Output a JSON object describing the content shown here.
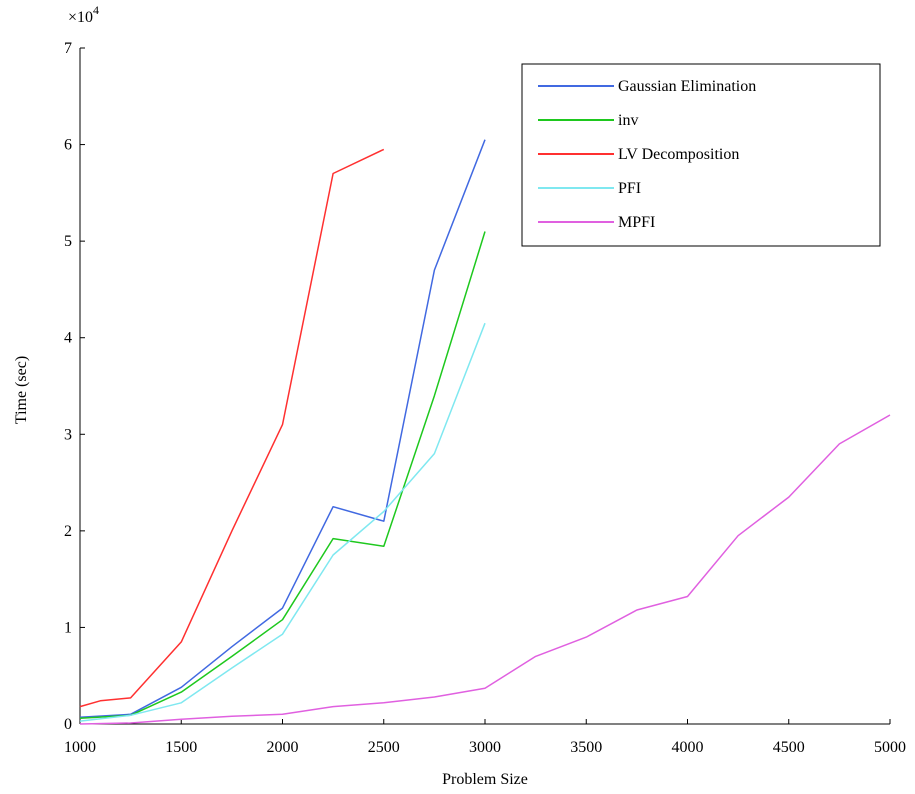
{
  "chart_data": {
    "type": "line",
    "title": "",
    "xlabel": "Problem Size",
    "ylabel": "Time (sec)",
    "y_multiplier_label": "×10",
    "y_multiplier_exponent": "4",
    "xlim": [
      1000,
      5000
    ],
    "ylim": [
      0,
      70000
    ],
    "x_ticks": [
      1000,
      1500,
      2000,
      2500,
      3000,
      3500,
      4000,
      4500,
      5000
    ],
    "x_tick_labels": [
      "1000",
      "1500",
      "2000",
      "2500",
      "3000",
      "3500",
      "4000",
      "4500",
      "5000"
    ],
    "y_ticks": [
      0,
      10000,
      20000,
      30000,
      40000,
      50000,
      60000,
      70000
    ],
    "y_tick_labels": [
      "0",
      "1",
      "2",
      "3",
      "4",
      "5",
      "6",
      "7"
    ],
    "grid": false,
    "legend_position": "top-right",
    "series": [
      {
        "name": "Gaussian Elimination",
        "color": "#4169e1",
        "x": [
          1000,
          1250,
          1500,
          1750,
          2000,
          2250,
          2500,
          2750,
          3000
        ],
        "y": [
          700,
          1000,
          3800,
          8000,
          12000,
          22500,
          21000,
          47000,
          60500
        ]
      },
      {
        "name": "inv",
        "color": "#1ec81e",
        "x": [
          1000,
          1250,
          1500,
          1750,
          2000,
          2250,
          2500,
          2750,
          3000
        ],
        "y": [
          600,
          900,
          3300,
          7000,
          10800,
          19200,
          18400,
          34000,
          51000
        ]
      },
      {
        "name": "LV Decomposition",
        "color": "#ff3030",
        "x": [
          1000,
          1100,
          1250,
          1500,
          1750,
          2000,
          2250,
          2500
        ],
        "y": [
          1800,
          2400,
          2700,
          8500,
          20000,
          31000,
          57000,
          59500
        ]
      },
      {
        "name": "PFI",
        "color": "#7fe8f0",
        "x": [
          1000,
          1250,
          1500,
          1750,
          2000,
          2250,
          2500,
          2750,
          3000
        ],
        "y": [
          300,
          900,
          2200,
          5800,
          9300,
          17500,
          22000,
          28000,
          41500
        ]
      },
      {
        "name": "MPFI",
        "color": "#e060e0",
        "x": [
          1000,
          1250,
          1500,
          1750,
          2000,
          2250,
          2500,
          2750,
          3000,
          3250,
          3500,
          3750,
          4000,
          4250,
          4500,
          4750,
          5000
        ],
        "y": [
          0,
          100,
          500,
          800,
          1000,
          1800,
          2200,
          2800,
          3700,
          7000,
          9000,
          11800,
          13200,
          19500,
          23500,
          29000,
          32000
        ]
      }
    ]
  }
}
